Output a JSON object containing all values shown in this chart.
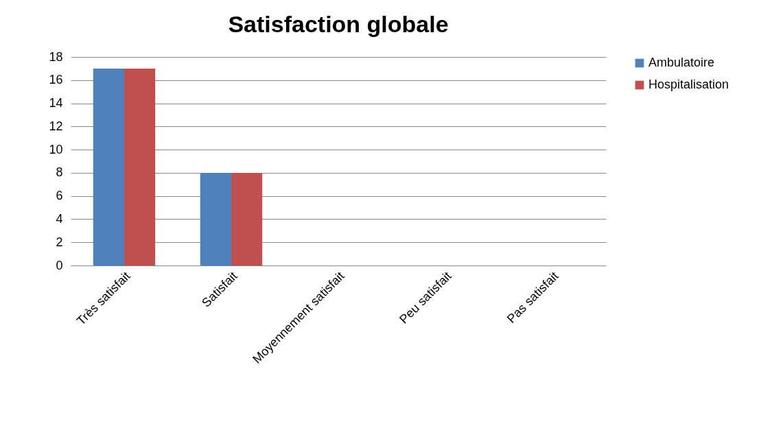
{
  "chart_data": {
    "type": "bar",
    "title": "Satisfaction globale",
    "categories": [
      "Très satisfait",
      "Satisfait",
      "Moyennement satisfait",
      "Peu satisfait",
      "Pas satisfait"
    ],
    "series": [
      {
        "name": "Ambulatoire",
        "color": "#4f81bd",
        "values": [
          17,
          8,
          0,
          0,
          0
        ]
      },
      {
        "name": "Hospitalisation",
        "color": "#c0504d",
        "values": [
          17,
          8,
          0,
          0,
          0
        ]
      }
    ],
    "ylim": [
      0,
      18
    ],
    "yticks": [
      0,
      2,
      4,
      6,
      8,
      10,
      12,
      14,
      16,
      18
    ],
    "grid": "y",
    "legend": "right"
  }
}
